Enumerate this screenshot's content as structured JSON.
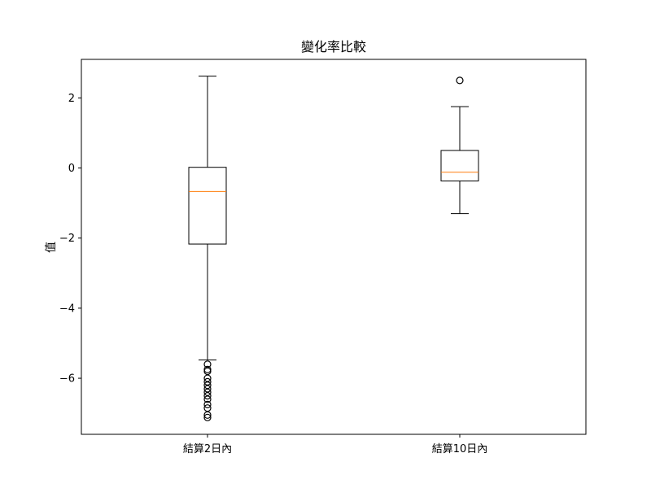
{
  "chart_data": {
    "type": "box",
    "title": "變化率比較",
    "xlabel": "",
    "ylabel": "值",
    "ylim": [
      -7.6,
      3.1
    ],
    "yticks": [
      2,
      0,
      -2,
      -4,
      -6
    ],
    "grid": false,
    "categories": [
      "結算2日內",
      "結算10日內"
    ],
    "boxes": [
      {
        "category": "結算2日內",
        "whisker_low": -5.48,
        "q1": -2.17,
        "median": -0.67,
        "q3": 0.02,
        "whisker_high": 2.62,
        "outliers": [
          -5.6,
          -5.75,
          -5.8,
          -6.0,
          -6.1,
          -6.2,
          -6.3,
          -6.4,
          -6.5,
          -6.6,
          -6.75,
          -6.85,
          -7.05,
          -7.12
        ]
      },
      {
        "category": "結算10日內",
        "whisker_low": -1.3,
        "q1": -0.37,
        "median": -0.12,
        "q3": 0.5,
        "whisker_high": 1.75,
        "outliers": [
          2.5
        ]
      }
    ],
    "colors": {
      "box": "#000000",
      "median": "#ff7f0e"
    }
  }
}
